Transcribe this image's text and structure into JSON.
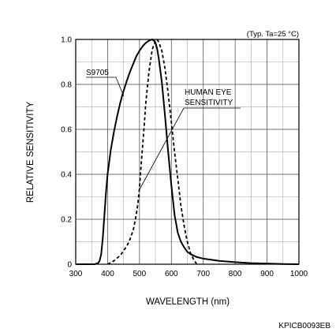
{
  "chart_data": {
    "type": "line",
    "note": "(Typ. Ta=25 °C)",
    "xlabel": "WAVELENGTH (nm)",
    "ylabel": "RELATIVE SENSITIVITY",
    "xlim": [
      300,
      1000
    ],
    "ylim": [
      0,
      1.0
    ],
    "xticks": [
      300,
      400,
      500,
      600,
      700,
      800,
      900,
      1000
    ],
    "yticks": [
      0,
      0.2,
      0.4,
      0.6,
      0.8,
      1.0
    ],
    "ytick_labels": [
      "0",
      "0.2",
      "0.4",
      "0.6",
      "0.8",
      "1.0"
    ],
    "x_minor_step": 50,
    "y_minor_step": 0.1,
    "grid": true,
    "series": [
      {
        "name": "S9705",
        "style": "solid",
        "x": [
          300,
          360,
          370,
          375,
          380,
          385,
          390,
          395,
          400,
          410,
          420,
          430,
          440,
          450,
          460,
          470,
          480,
          490,
          500,
          510,
          520,
          530,
          540,
          545,
          550,
          555,
          560,
          570,
          580,
          590,
          600,
          610,
          620,
          630,
          640,
          650,
          660,
          670,
          680,
          700,
          750,
          800,
          850,
          900,
          950,
          1000
        ],
        "y": [
          0,
          0,
          0.005,
          0.015,
          0.045,
          0.12,
          0.22,
          0.32,
          0.4,
          0.51,
          0.59,
          0.66,
          0.72,
          0.77,
          0.815,
          0.855,
          0.89,
          0.925,
          0.95,
          0.97,
          0.985,
          0.995,
          1.0,
          0.995,
          0.985,
          0.96,
          0.92,
          0.81,
          0.66,
          0.5,
          0.35,
          0.22,
          0.14,
          0.1,
          0.075,
          0.055,
          0.045,
          0.038,
          0.032,
          0.025,
          0.015,
          0.009,
          0.005,
          0.003,
          0.001,
          0
        ]
      },
      {
        "name": "HUMAN EYE SENSITIVITY",
        "style": "dashed",
        "x": [
          400,
          420,
          440,
          460,
          470,
          480,
          490,
          495,
          500,
          505,
          510,
          515,
          520,
          530,
          540,
          550,
          555,
          560,
          570,
          580,
          590,
          600,
          610,
          620,
          630,
          640,
          650,
          660,
          670,
          680
        ],
        "y": [
          0,
          0.015,
          0.04,
          0.08,
          0.11,
          0.15,
          0.22,
          0.27,
          0.34,
          0.44,
          0.53,
          0.62,
          0.72,
          0.86,
          0.955,
          0.995,
          1.0,
          0.99,
          0.95,
          0.87,
          0.76,
          0.63,
          0.5,
          0.38,
          0.26,
          0.17,
          0.1,
          0.05,
          0.02,
          0
        ]
      }
    ],
    "annotations": [
      {
        "text": "S9705",
        "target_series": "S9705"
      },
      {
        "text": "HUMAN EYE",
        "line2": "SENSITIVITY",
        "target_series": "HUMAN EYE SENSITIVITY"
      }
    ]
  },
  "figure_code": "KPICB0093EB"
}
